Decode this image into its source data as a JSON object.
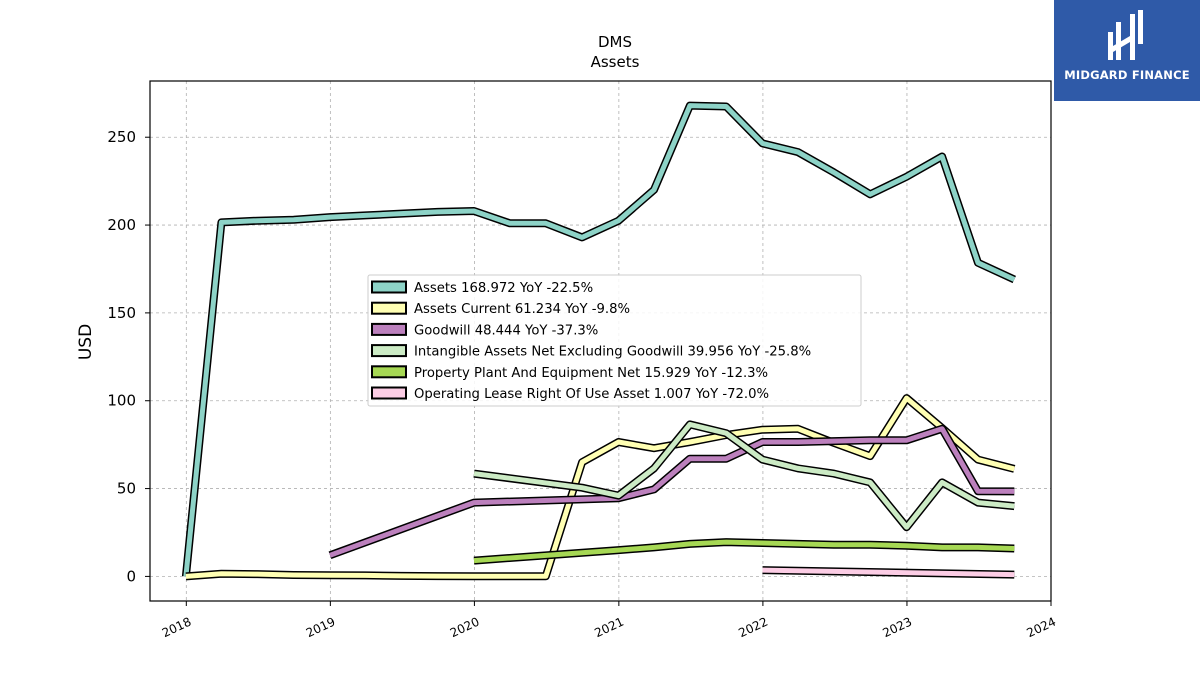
{
  "chart_data": {
    "type": "line",
    "title": "DMS",
    "subtitle": "Assets",
    "xlabel": "",
    "ylabel": "USD",
    "xlim": [
      "2017-10-01",
      "2024-01-01"
    ],
    "ylim": [
      -14,
      282
    ],
    "x_ticks": [
      "2018",
      "2019",
      "2020",
      "2021",
      "2022",
      "2023",
      "2024"
    ],
    "y_ticks": [
      0,
      50,
      100,
      150,
      200,
      250
    ],
    "grid": true,
    "legend_placement": "center",
    "series": [
      {
        "name": "Assets",
        "legend": "Assets  168.972 YoY -22.5%",
        "color": "#8dd3c7",
        "x": [
          "2017-12-31",
          "2018-03-31",
          "2018-06-30",
          "2018-09-30",
          "2018-12-31",
          "2019-03-31",
          "2019-06-30",
          "2019-09-30",
          "2019-12-31",
          "2020-03-31",
          "2020-06-30",
          "2020-09-30",
          "2020-12-31",
          "2021-03-31",
          "2021-06-30",
          "2021-09-30",
          "2021-12-31",
          "2022-03-31",
          "2022-06-30",
          "2022-09-30",
          "2022-12-31",
          "2023-03-31",
          "2023-06-30",
          "2023-09-30"
        ],
        "y": [
          0,
          201.5,
          202.5,
          203,
          204.5,
          205.5,
          206.5,
          207.5,
          208,
          201,
          201,
          193,
          202.5,
          220,
          268,
          267.5,
          246.5,
          241.5,
          230,
          217.5,
          227.5,
          239,
          178.5,
          169
        ]
      },
      {
        "name": "Assets Current",
        "legend": "Assets Current  61.234 YoY -9.8%",
        "color": "#ffffb3",
        "x": [
          "2017-12-31",
          "2018-03-31",
          "2018-06-30",
          "2018-09-30",
          "2018-12-31",
          "2019-03-31",
          "2019-06-30",
          "2019-09-30",
          "2019-12-31",
          "2020-03-31",
          "2020-06-30",
          "2020-09-30",
          "2020-12-31",
          "2021-03-31",
          "2021-06-30",
          "2021-09-30",
          "2021-12-31",
          "2022-03-31",
          "2022-06-30",
          "2022-09-30",
          "2022-12-31",
          "2023-03-31",
          "2023-06-30",
          "2023-09-30"
        ],
        "y": [
          0,
          1.5,
          1.3,
          0.8,
          0.7,
          0.6,
          0.3,
          0.2,
          0.1,
          0.1,
          0.1,
          65,
          76.5,
          73,
          76.5,
          80.5,
          83.5,
          84,
          76,
          68.5,
          101.5,
          84.5,
          66.5,
          61.2
        ]
      },
      {
        "name": "Goodwill",
        "legend": "Goodwill  48.444 YoY -37.3%",
        "color": "#bc80bd",
        "x": [
          "2018-12-31",
          "2019-12-31",
          "2020-12-31",
          "2021-03-31",
          "2021-06-30",
          "2021-09-30",
          "2021-12-31",
          "2022-03-31",
          "2022-06-30",
          "2022-09-30",
          "2022-12-31",
          "2023-03-31",
          "2023-06-30",
          "2023-09-30"
        ],
        "y": [
          12,
          42,
          44.5,
          49.5,
          67,
          67,
          76.5,
          76.5,
          77,
          77.5,
          77.5,
          84,
          48.5,
          48.4
        ]
      },
      {
        "name": "Intangible Assets Net Excluding Goodwill",
        "legend": "Intangible Assets Net Excluding Goodwill  39.956 YoY -25.8%",
        "color": "#ccebc5",
        "x": [
          "2019-12-31",
          "2020-09-30",
          "2020-12-31",
          "2021-03-31",
          "2021-06-30",
          "2021-09-30",
          "2021-12-31",
          "2022-03-31",
          "2022-06-30",
          "2022-09-30",
          "2022-12-31",
          "2023-03-31",
          "2023-06-30",
          "2023-09-30"
        ],
        "y": [
          58.5,
          50.5,
          46,
          61.5,
          86.5,
          81.5,
          66.5,
          61.5,
          58.5,
          53.5,
          28,
          53.5,
          42,
          40
        ]
      },
      {
        "name": "Property Plant And Equipment Net",
        "legend": "Property Plant And Equipment Net  15.929 YoY -12.3%",
        "color": "#a6d854",
        "x": [
          "2019-12-31",
          "2020-09-30",
          "2020-12-31",
          "2021-03-31",
          "2021-06-30",
          "2021-09-30",
          "2021-12-31",
          "2022-03-31",
          "2022-06-30",
          "2022-09-30",
          "2022-12-31",
          "2023-03-31",
          "2023-06-30",
          "2023-09-30"
        ],
        "y": [
          9,
          13.5,
          15,
          16.5,
          18.5,
          19.5,
          19,
          18.5,
          18,
          18,
          17.5,
          16.5,
          16.5,
          15.9
        ]
      },
      {
        "name": "Operating Lease Right Of Use Asset",
        "legend": "Operating Lease Right Of Use Asset  1.007 YoY -72.0%",
        "color": "#fccde5",
        "x": [
          "2021-12-31",
          "2023-09-30"
        ],
        "y": [
          3.6,
          1.0
        ]
      }
    ]
  },
  "logo": {
    "text": "MIDGARD FINANCE"
  }
}
